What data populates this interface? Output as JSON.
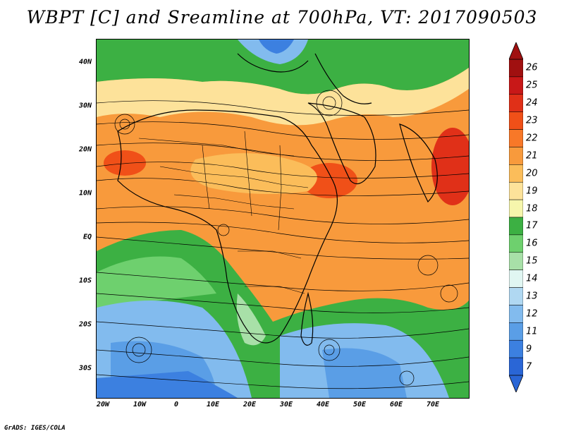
{
  "title": "WBPT [C] and Sreamline at 700hPa, VT: 2017090503",
  "credit": "GrADS: IGES/COLA",
  "lat_labels": [
    "40N",
    "30N",
    "20N",
    "10N",
    "EQ",
    "10S",
    "20S",
    "30S"
  ],
  "lon_labels": [
    "20W",
    "10W",
    "0",
    "10E",
    "20E",
    "30E",
    "40E",
    "50E",
    "60E",
    "70E"
  ],
  "colorbar": {
    "levels": [
      "26",
      "25",
      "24",
      "23",
      "22",
      "21",
      "20",
      "19",
      "18",
      "17",
      "16",
      "15",
      "14",
      "13",
      "12",
      "11",
      "9",
      "7"
    ],
    "colors": [
      "#a01010",
      "#c81818",
      "#e03018",
      "#f05018",
      "#f87828",
      "#f89a3c",
      "#fbbd5a",
      "#fde29a",
      "#f6f6ac",
      "#3cb043",
      "#6ed06e",
      "#a8e0a8",
      "#e0f6f2",
      "#b0d8f2",
      "#82bbee",
      "#5a9ee6",
      "#3c80e0",
      "#2a66d6"
    ],
    "top_arrow_color": "#a01010",
    "bottom_arrow_color": "#2a66d6"
  }
}
